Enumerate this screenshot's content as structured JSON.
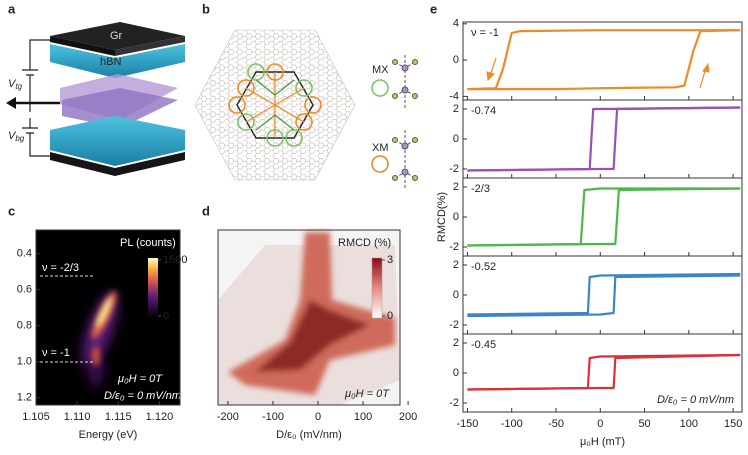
{
  "panel_labels": [
    "a",
    "b",
    "c",
    "d",
    "e"
  ],
  "panel_a": {
    "layers": [
      "Gr",
      "hBN"
    ],
    "top_gate": {
      "symbol": "V",
      "subscript": "tg"
    },
    "bottom_gate": {
      "symbol": "V",
      "subscript": "bg"
    }
  },
  "panel_b": {
    "labels": [
      "MX",
      "XM"
    ]
  },
  "panel_c": {
    "xlabel": "Energy (eV)",
    "xlim": [
      1.105,
      1.1225
    ],
    "xticks": [
      {
        "value": 1.105,
        "label": "1.105"
      },
      {
        "value": 1.11,
        "label": "1.110"
      },
      {
        "value": 1.115,
        "label": "1.115"
      },
      {
        "value": 1.12,
        "label": "1.120"
      }
    ],
    "ylim": [
      0.27,
      1.24
    ],
    "y_inverted": true,
    "yticks": [
      0.4,
      0.6,
      0.8,
      {
        "value": 1,
        "label": "1.0"
      },
      1.2
    ],
    "colorbar": {
      "title": "PL (counts)",
      "ticks": [
        0,
        1500
      ]
    },
    "annotations": [
      "ν = -2/3",
      "ν = -1",
      "μ₀H = 0T",
      "D/ε₀ = 0 mV/nm"
    ]
  },
  "panel_d": {
    "xlabel": "D/ε₀ (mV/nm)",
    "xlim": [
      -222,
      182
    ],
    "xticks": [
      -200,
      -100,
      0,
      100,
      200
    ],
    "colorbar": {
      "title": "RMCD (%)",
      "ticks": [
        0,
        3
      ]
    },
    "annotations": [
      "μ₀H = 0T"
    ]
  },
  "chart_data": {
    "type": "line",
    "xlabel": "μ₀H (mT)",
    "ylabel": "RMCD(%)",
    "xlim": [
      -155,
      160
    ],
    "xticks": [
      -150,
      -100,
      -50,
      0,
      50,
      100,
      150
    ],
    "annotation": "D/ε₀ = 0 mV/nm",
    "panels": [
      {
        "label": "ν = -1",
        "color": "#f08a24",
        "ylim": [
          -4.4,
          4.2
        ],
        "yticks": [
          -4,
          0,
          4
        ],
        "series": [
          {
            "x": [
              158,
              100,
              0,
              -90,
              -100,
              -110,
              -118,
              -150
            ],
            "values": [
              3.3,
              3.3,
              3.3,
              3.2,
              3.0,
              -1,
              -3.1,
              -3.2
            ]
          },
          {
            "x": [
              -150,
              -50,
              0,
              85,
              95,
              105,
              113,
              158
            ],
            "values": [
              -3.2,
              -3.2,
              -3.1,
              -3.0,
              -2.8,
              1,
              3.2,
              3.3
            ]
          }
        ]
      },
      {
        "label": "-0.74",
        "color": "#9b4fb8",
        "ylim": [
          -2.6,
          2.6
        ],
        "yticks": [
          -2,
          0,
          2
        ],
        "series": [
          {
            "x": [
              158,
              0,
              -8,
              -10,
              -12,
              -150
            ],
            "values": [
              2.1,
              2.0,
              2.0,
              0,
              -2.0,
              -2.1
            ]
          },
          {
            "x": [
              -150,
              0,
              15,
              17,
              19,
              158
            ],
            "values": [
              -2.1,
              -2.0,
              -2.0,
              0,
              2.0,
              2.1
            ]
          }
        ]
      },
      {
        "label": "-2/3",
        "color": "#4cb84a",
        "ylim": [
          -2.6,
          2.6
        ],
        "yticks": [
          -2,
          0,
          2
        ],
        "series": [
          {
            "x": [
              158,
              0,
              -18,
              -20,
              -22,
              -150
            ],
            "values": [
              1.9,
              1.9,
              1.8,
              0,
              -1.8,
              -1.9
            ]
          },
          {
            "x": [
              -150,
              0,
              17,
              19,
              21,
              158
            ],
            "values": [
              -1.9,
              -1.8,
              -1.8,
              0,
              1.8,
              1.9
            ]
          }
        ]
      },
      {
        "label": "-0.52",
        "color": "#3a86c8",
        "ylim": [
          -2.6,
          2.6
        ],
        "yticks": [
          -2,
          0,
          2
        ],
        "series": [
          {
            "x": [
              158,
              0,
              -12,
              -13,
              -14,
              -150
            ],
            "values": [
              1.4,
              1.3,
              1.2,
              0,
              -1.2,
              -1.3
            ]
          },
          {
            "x": [
              -150,
              0,
              15,
              16,
              17,
              158
            ],
            "values": [
              -1.4,
              -1.3,
              -1.2,
              0,
              1.2,
              1.3
            ]
          }
        ]
      },
      {
        "label": "-0.45",
        "color": "#d9323a",
        "ylim": [
          -2.6,
          2.6
        ],
        "yticks": [
          -2,
          0,
          2
        ],
        "series": [
          {
            "x": [
              158,
              0,
              -12,
              -13,
              -14,
              -150
            ],
            "values": [
              1.2,
              1.1,
              1.0,
              0,
              -1.0,
              -1.1
            ]
          },
          {
            "x": [
              -150,
              0,
              15,
              16,
              17,
              158
            ],
            "values": [
              -1.1,
              -1.0,
              -1.0,
              0,
              1.0,
              1.2
            ]
          }
        ]
      }
    ]
  }
}
